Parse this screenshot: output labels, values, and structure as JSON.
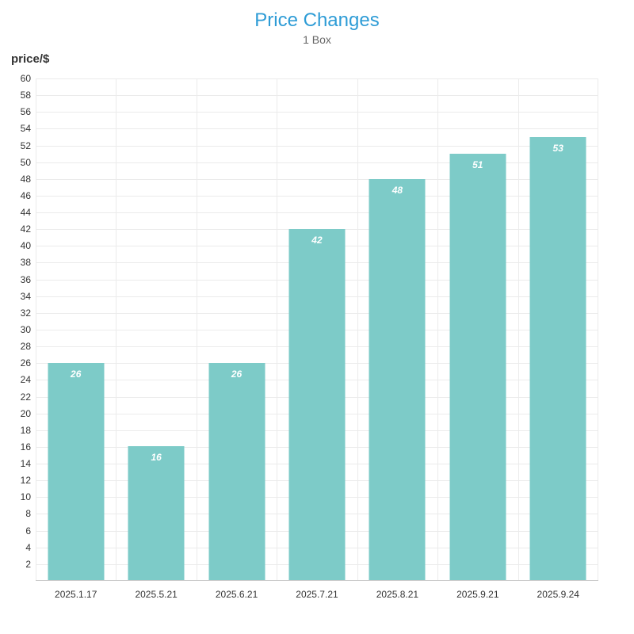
{
  "header": {
    "title": "Price Changes",
    "subtitle": "1 Box"
  },
  "chart_data": {
    "type": "bar",
    "title": "Price Changes",
    "subtitle": "1 Box",
    "categories": [
      "2025.1.17",
      "2025.5.21",
      "2025.6.21",
      "2025.7.21",
      "2025.8.21",
      "2025.9.21",
      "2025.9.24"
    ],
    "values": [
      26,
      16,
      26,
      42,
      48,
      51,
      53
    ],
    "xlabel": "",
    "ylabel": "price/$",
    "ylim": [
      0,
      60
    ],
    "ytick_step": 2,
    "grid": true,
    "legend": "none",
    "colors": {
      "bar_fill": "#7dcbc8",
      "bar_value_label": "#ffffff",
      "title": "#2e9cd6",
      "subtitle": "#666666",
      "axis_text": "#333333",
      "gridline": "#ebebeb",
      "axis_line": "#cccccc",
      "background": "#ffffff"
    }
  }
}
